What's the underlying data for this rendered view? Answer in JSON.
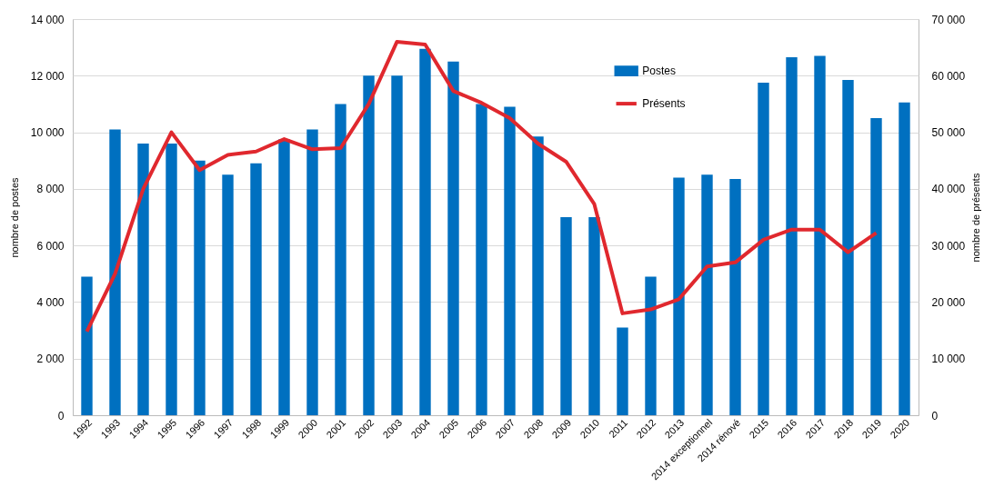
{
  "chart_data": {
    "type": "bar",
    "categories": [
      "1992",
      "1993",
      "1994",
      "1995",
      "1996",
      "1997",
      "1998",
      "1999",
      "2000",
      "2001",
      "2002",
      "2003",
      "2004",
      "2005",
      "2006",
      "2007",
      "2008",
      "2009",
      "2010",
      "2011",
      "2012",
      "2013",
      "2014 exceptionnel",
      "2014 rénové",
      "2015",
      "2016",
      "2017",
      "2018",
      "2019",
      "2020"
    ],
    "series": [
      {
        "name": "Postes",
        "color": "#0070c0",
        "values": [
          4900,
          10100,
          9600,
          9600,
          9000,
          8500,
          8900,
          9750,
          10100,
          11000,
          12000,
          12000,
          12950,
          12500,
          11000,
          10900,
          9850,
          7000,
          7000,
          3100,
          4900,
          8400,
          8500,
          8350,
          11750,
          12650,
          12700,
          11850,
          10500,
          11050
        ]
      },
      {
        "name": "Présents",
        "type": "line",
        "axis": "y2",
        "color": "#e0282e",
        "values": [
          14800,
          25000,
          40000,
          50000,
          43300,
          46000,
          46600,
          48800,
          47000,
          47200,
          55000,
          66000,
          65500,
          57300,
          55200,
          52500,
          48000,
          44800,
          37300,
          18000,
          18700,
          20500,
          26300,
          27000,
          31000,
          32800,
          32800,
          28800,
          32200,
          null
        ]
      }
    ],
    "ylabel": "nombre de postes",
    "y2label": "nombre de présents",
    "ylim": [
      0,
      14000
    ],
    "yticks": [
      {
        "value": 0,
        "label": "0"
      },
      {
        "value": 2000,
        "label": "2 000"
      },
      {
        "value": 4000,
        "label": "4 000"
      },
      {
        "value": 6000,
        "label": "6 000"
      },
      {
        "value": 8000,
        "label": "8 000"
      },
      {
        "value": 10000,
        "label": "10 000"
      },
      {
        "value": 12000,
        "label": "12 000"
      },
      {
        "value": 14000,
        "label": "14 000"
      }
    ],
    "y2lim": [
      0,
      70000
    ],
    "y2ticks": [
      {
        "value": 0,
        "label": "0"
      },
      {
        "value": 10000,
        "label": "10 000"
      },
      {
        "value": 20000,
        "label": "20 000"
      },
      {
        "value": 30000,
        "label": "30 000"
      },
      {
        "value": 40000,
        "label": "40 000"
      },
      {
        "value": 50000,
        "label": "50 000"
      },
      {
        "value": 60000,
        "label": "60 000"
      },
      {
        "value": 70000,
        "label": "70 000"
      }
    ],
    "grid": "y",
    "legend": "top right",
    "line_style": "solid",
    "marker": "none"
  }
}
